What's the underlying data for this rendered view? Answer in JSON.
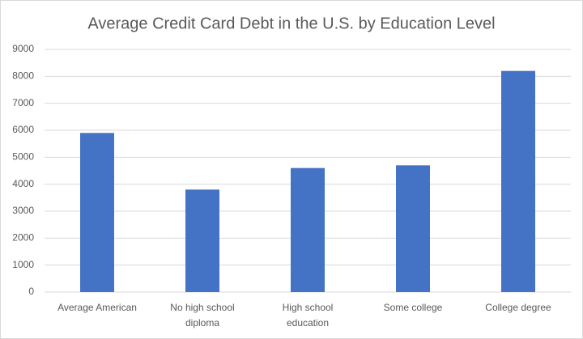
{
  "chart_data": {
    "type": "bar",
    "title": "Average Credit Card Debt in the U.S. by Education Level",
    "categories": [
      "Average American",
      "No high school diploma",
      "High school education",
      "Some college",
      "College degree"
    ],
    "values": [
      5900,
      3800,
      4600,
      4700,
      8200
    ],
    "color": "#4472c4",
    "ylim": [
      0,
      9000
    ],
    "yticks": [
      0,
      1000,
      2000,
      3000,
      4000,
      5000,
      6000,
      7000,
      8000,
      9000
    ],
    "grid": true
  }
}
